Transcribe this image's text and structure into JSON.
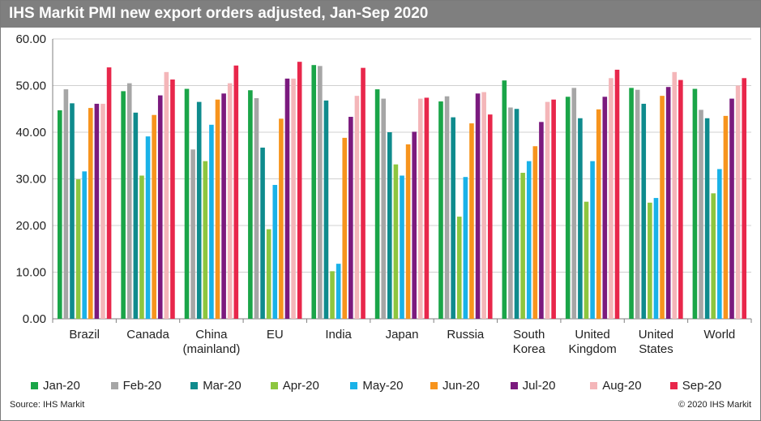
{
  "title": "IHS Markit PMI new export orders adjusted, Jan-Sep 2020",
  "source": "Source: IHS Markit",
  "copyright": "© 2020 IHS Markit",
  "chart_data": {
    "type": "bar",
    "title": "IHS Markit PMI new export orders adjusted, Jan-Sep 2020",
    "xlabel": "",
    "ylabel": "",
    "ylim": [
      0,
      60
    ],
    "yticks": [
      "0.00",
      "10.00",
      "20.00",
      "30.00",
      "40.00",
      "50.00",
      "60.00"
    ],
    "grid": true,
    "legend_position": "bottom",
    "categories": [
      [
        "Brazil"
      ],
      [
        "Canada"
      ],
      [
        "China",
        "(mainland)"
      ],
      [
        "EU"
      ],
      [
        "India"
      ],
      [
        "Japan"
      ],
      [
        "Russia"
      ],
      [
        "South",
        "Korea"
      ],
      [
        "United",
        "Kingdom"
      ],
      [
        "United",
        "States"
      ],
      [
        "World"
      ]
    ],
    "series": [
      {
        "name": "Jan-20",
        "color": "#1aa548",
        "values": [
          44.7,
          48.8,
          49.3,
          49.0,
          54.4,
          49.2,
          46.6,
          51.1,
          47.6,
          49.5,
          49.3
        ]
      },
      {
        "name": "Feb-20",
        "color": "#a6a6a6",
        "values": [
          49.2,
          50.5,
          36.3,
          47.3,
          54.2,
          47.2,
          47.7,
          45.3,
          49.5,
          49.1,
          44.8
        ]
      },
      {
        "name": "Mar-20",
        "color": "#0f8b8d",
        "values": [
          46.2,
          44.2,
          46.5,
          36.7,
          46.8,
          40.0,
          43.2,
          45.0,
          43.0,
          46.1,
          43.0
        ]
      },
      {
        "name": "Apr-20",
        "color": "#8dc63f",
        "values": [
          29.9,
          30.7,
          33.8,
          19.2,
          10.2,
          33.1,
          21.9,
          31.3,
          25.1,
          24.9,
          26.9
        ]
      },
      {
        "name": "May-20",
        "color": "#1ab2e8",
        "values": [
          31.6,
          39.1,
          41.6,
          28.7,
          11.8,
          30.7,
          30.4,
          33.8,
          33.8,
          25.9,
          32.1
        ]
      },
      {
        "name": "Jun-20",
        "color": "#f7941d",
        "values": [
          45.2,
          43.7,
          47.0,
          42.9,
          38.8,
          37.4,
          41.9,
          37.0,
          44.9,
          47.8,
          43.5
        ]
      },
      {
        "name": "Jul-20",
        "color": "#7b1a7e",
        "values": [
          46.1,
          47.9,
          48.3,
          51.5,
          43.3,
          40.1,
          48.3,
          42.2,
          47.6,
          49.7,
          47.2
        ]
      },
      {
        "name": "Aug-20",
        "color": "#f4b6b9",
        "values": [
          46.1,
          52.9,
          50.5,
          51.5,
          47.8,
          47.2,
          48.6,
          46.5,
          51.6,
          52.9,
          50.0
        ]
      },
      {
        "name": "Sep-20",
        "color": "#e8274b",
        "values": [
          53.9,
          51.3,
          54.3,
          55.1,
          53.8,
          47.4,
          43.8,
          47.0,
          53.4,
          51.2,
          51.6
        ]
      }
    ]
  }
}
